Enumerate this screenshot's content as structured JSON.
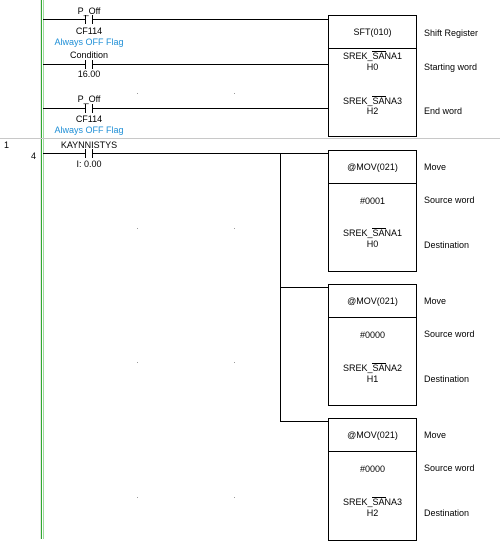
{
  "rung": {
    "number": "1",
    "step": "4"
  },
  "sft_block": {
    "instruction": "SFT(010)",
    "description": "Shift Register",
    "starting_word": {
      "name": "SREK_SANA1",
      "address": "H0",
      "description": "Starting word"
    },
    "end_word": {
      "name": "SREK_SANA3",
      "address": "H2",
      "description": "End word"
    }
  },
  "sft_inputs": {
    "p_off_1": {
      "name": "P_Off",
      "address": "CF114",
      "comment": "Always OFF Flag"
    },
    "condition": {
      "name": "Condition",
      "address": "16.00"
    },
    "p_off_2": {
      "name": "P_Off",
      "address": "CF114",
      "comment": "Always OFF Flag"
    }
  },
  "rung1_contact": {
    "name": "KAYNNISTYS",
    "address": "I: 0.00"
  },
  "mov_blocks": [
    {
      "instruction": "@MOV(021)",
      "description": "Move",
      "source": "#0001",
      "source_label": "Source word",
      "dest_name": "SREK_SANA1",
      "dest_addr": "H0",
      "dest_label": "Destination"
    },
    {
      "instruction": "@MOV(021)",
      "description": "Move",
      "source": "#0000",
      "source_label": "Source word",
      "dest_name": "SREK_SANA2",
      "dest_addr": "H1",
      "dest_label": "Destination"
    },
    {
      "instruction": "@MOV(021)",
      "description": "Move",
      "source": "#0000",
      "source_label": "Source word",
      "dest_name": "SREK_SANA3",
      "dest_addr": "H2",
      "dest_label": "Destination"
    }
  ],
  "colors": {
    "rail": "#2faa2f",
    "comment": "#1f8fd6",
    "separator": "#c8c8c8"
  }
}
